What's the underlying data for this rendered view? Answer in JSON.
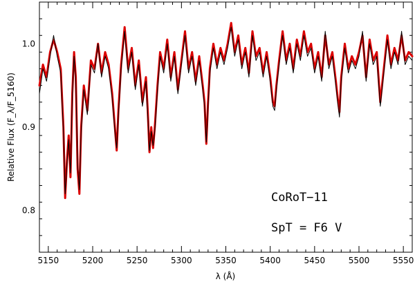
{
  "chart_data": {
    "type": "line",
    "xlabel": "λ (Å)",
    "ylabel": "Relative Flux (F_λ/F_5160)",
    "xlim": [
      5140,
      5560
    ],
    "ylim": [
      0.75,
      1.05
    ],
    "x_ticks": [
      5150,
      5200,
      5250,
      5300,
      5350,
      5400,
      5450,
      5500,
      5550
    ],
    "y_ticks": [
      0.8,
      0.9,
      1.0
    ],
    "annotations": [
      "CoRoT−11",
      "SpT = F6 V"
    ],
    "grid": false,
    "legend": "none",
    "colors": {
      "observed": "#dd0000",
      "template": "#000000"
    },
    "series": [
      {
        "key": "observed",
        "x": [
          5140,
          5144,
          5148,
          5152,
          5156,
          5160,
          5164,
          5167,
          5169,
          5171,
          5173,
          5175,
          5177,
          5179,
          5181,
          5183,
          5185,
          5187,
          5190,
          5194,
          5198,
          5202,
          5206,
          5210,
          5214,
          5218,
          5222,
          5225,
          5227,
          5229,
          5232,
          5236,
          5240,
          5244,
          5248,
          5252,
          5256,
          5260,
          5262,
          5264,
          5266,
          5268,
          5270,
          5273,
          5276,
          5280,
          5284,
          5288,
          5292,
          5296,
          5300,
          5304,
          5308,
          5312,
          5316,
          5320,
          5324,
          5326,
          5328,
          5330,
          5332,
          5336,
          5340,
          5344,
          5348,
          5352,
          5356,
          5360,
          5364,
          5368,
          5372,
          5376,
          5380,
          5384,
          5388,
          5392,
          5396,
          5400,
          5403,
          5405,
          5407,
          5410,
          5414,
          5418,
          5422,
          5426,
          5430,
          5434,
          5438,
          5442,
          5446,
          5450,
          5454,
          5458,
          5462,
          5466,
          5470,
          5474,
          5476,
          5478,
          5480,
          5484,
          5488,
          5492,
          5496,
          5500,
          5504,
          5508,
          5512,
          5516,
          5520,
          5524,
          5528,
          5532,
          5536,
          5540,
          5544,
          5548,
          5552,
          5556,
          5560
        ],
        "y": [
          0.95,
          0.975,
          0.96,
          0.99,
          1.005,
          0.99,
          0.97,
          0.9,
          0.815,
          0.86,
          0.89,
          0.84,
          0.94,
          0.99,
          0.96,
          0.85,
          0.82,
          0.9,
          0.95,
          0.92,
          0.98,
          0.97,
          1.0,
          0.965,
          0.99,
          0.975,
          0.94,
          0.9,
          0.872,
          0.92,
          0.975,
          1.02,
          0.97,
          0.995,
          0.95,
          0.98,
          0.93,
          0.96,
          0.92,
          0.87,
          0.9,
          0.875,
          0.9,
          0.95,
          0.99,
          0.97,
          1.005,
          0.96,
          0.99,
          0.945,
          0.98,
          1.015,
          0.97,
          0.99,
          0.955,
          0.985,
          0.95,
          0.93,
          0.88,
          0.93,
          0.97,
          1.0,
          0.975,
          0.995,
          0.98,
          1.0,
          1.025,
          0.99,
          1.01,
          0.975,
          0.995,
          0.965,
          1.015,
          0.985,
          0.995,
          0.965,
          0.99,
          0.96,
          0.93,
          0.925,
          0.95,
          0.98,
          1.015,
          0.98,
          1.0,
          0.97,
          1.005,
          0.985,
          1.015,
          0.99,
          1.0,
          0.97,
          0.99,
          0.96,
          1.01,
          0.975,
          0.99,
          0.955,
          0.935,
          0.918,
          0.96,
          1.0,
          0.97,
          0.985,
          0.975,
          0.99,
          1.01,
          0.96,
          1.005,
          0.98,
          0.99,
          0.93,
          0.97,
          1.01,
          0.975,
          0.995,
          0.98,
          1.01,
          0.98,
          0.99,
          0.985
        ]
      },
      {
        "key": "template",
        "x": [
          5140,
          5144,
          5148,
          5152,
          5156,
          5160,
          5164,
          5167,
          5169,
          5171,
          5173,
          5175,
          5177,
          5179,
          5181,
          5183,
          5185,
          5187,
          5190,
          5194,
          5198,
          5202,
          5206,
          5210,
          5214,
          5218,
          5222,
          5225,
          5227,
          5229,
          5232,
          5236,
          5240,
          5244,
          5248,
          5252,
          5256,
          5260,
          5262,
          5264,
          5266,
          5268,
          5270,
          5273,
          5276,
          5280,
          5284,
          5288,
          5292,
          5296,
          5300,
          5304,
          5308,
          5312,
          5316,
          5320,
          5324,
          5326,
          5328,
          5330,
          5332,
          5336,
          5340,
          5344,
          5348,
          5352,
          5356,
          5360,
          5364,
          5368,
          5372,
          5376,
          5380,
          5384,
          5388,
          5392,
          5396,
          5400,
          5403,
          5405,
          5407,
          5410,
          5414,
          5418,
          5422,
          5426,
          5430,
          5434,
          5438,
          5442,
          5446,
          5450,
          5454,
          5458,
          5462,
          5466,
          5470,
          5474,
          5476,
          5478,
          5480,
          5484,
          5488,
          5492,
          5496,
          5500,
          5504,
          5508,
          5512,
          5516,
          5520,
          5524,
          5528,
          5532,
          5536,
          5540,
          5544,
          5548,
          5552,
          5556,
          5560
        ],
        "y": [
          0.94,
          0.97,
          0.955,
          0.985,
          1.01,
          0.985,
          0.965,
          0.895,
          0.82,
          0.855,
          0.885,
          0.845,
          0.935,
          0.985,
          0.955,
          0.855,
          0.825,
          0.895,
          0.945,
          0.915,
          0.975,
          0.965,
          1.0,
          0.96,
          0.985,
          0.97,
          0.935,
          0.895,
          0.875,
          0.915,
          0.97,
          1.015,
          0.965,
          0.99,
          0.945,
          0.975,
          0.925,
          0.955,
          0.915,
          0.872,
          0.895,
          0.878,
          0.895,
          0.945,
          0.985,
          0.965,
          1.0,
          0.955,
          0.985,
          0.94,
          0.975,
          1.01,
          0.965,
          0.985,
          0.95,
          0.98,
          0.945,
          0.925,
          0.882,
          0.925,
          0.965,
          0.995,
          0.97,
          0.99,
          0.975,
          0.995,
          1.02,
          0.985,
          1.005,
          0.97,
          0.99,
          0.96,
          1.01,
          0.98,
          0.99,
          0.96,
          0.985,
          0.955,
          0.925,
          0.92,
          0.945,
          0.975,
          1.01,
          0.975,
          0.995,
          0.965,
          1.0,
          0.98,
          1.01,
          0.985,
          0.995,
          0.965,
          0.985,
          0.955,
          1.015,
          0.97,
          0.985,
          0.95,
          0.93,
          0.912,
          0.955,
          0.995,
          0.965,
          0.98,
          0.97,
          0.985,
          1.015,
          0.955,
          1.0,
          0.975,
          0.985,
          0.925,
          0.965,
          1.005,
          0.97,
          0.99,
          0.975,
          1.015,
          0.975,
          0.985,
          0.98
        ]
      }
    ]
  }
}
